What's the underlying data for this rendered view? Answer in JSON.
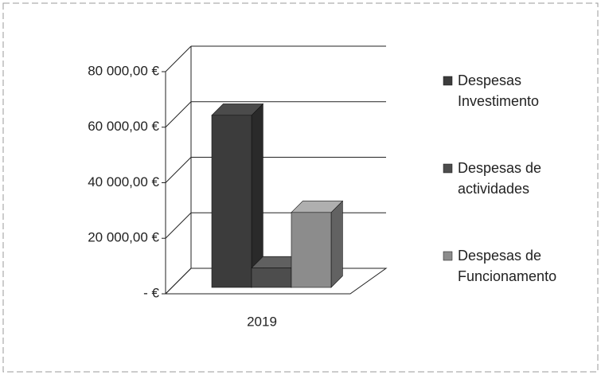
{
  "chart_data": {
    "type": "bar3d",
    "categories": [
      "2019"
    ],
    "series": [
      {
        "name": "Despesas Investimento",
        "color": "#3c3c3c",
        "values": [
          62000
        ]
      },
      {
        "name": "Despesas de actividades",
        "color": "#4d4d4d",
        "values": [
          7000
        ]
      },
      {
        "name": "Despesas de Funcionamento",
        "color": "#8c8c8c",
        "values": [
          27000
        ]
      }
    ],
    "ylim": [
      0,
      80000
    ],
    "yticks": [
      {
        "value": 0,
        "label": "-  €"
      },
      {
        "value": 20000,
        "label": "20 000,00 €"
      },
      {
        "value": 40000,
        "label": "40 000,00 €"
      },
      {
        "value": 60000,
        "label": "60 000,00 €"
      },
      {
        "value": 80000,
        "label": "80 000,00 €"
      }
    ],
    "grid": true,
    "legend": "right"
  }
}
